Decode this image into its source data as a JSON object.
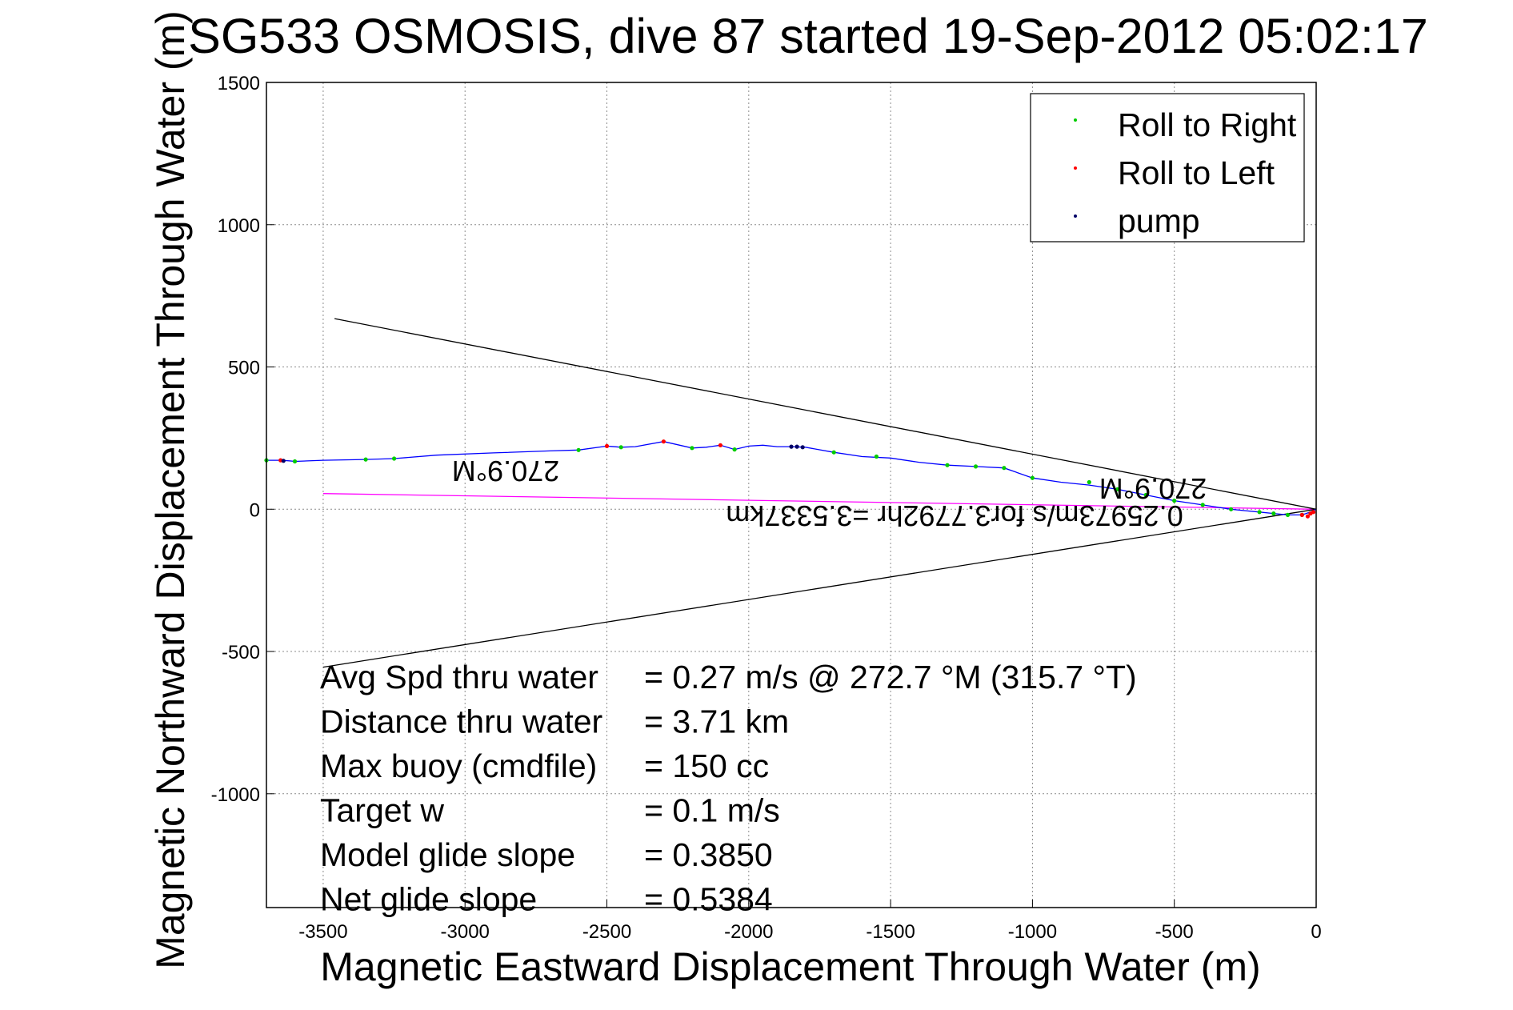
{
  "chart_data": {
    "type": "line",
    "title": "SG533 OSMOSIS, dive 87 started 19-Sep-2012 05:02:17",
    "xlabel": "Magnetic Eastward Displacement Through Water (m)",
    "ylabel": "Magnetic Northward Displacement Through Water (m)",
    "xlim": [
      -3700,
      0
    ],
    "ylim": [
      -1400,
      1500
    ],
    "xticks": [
      -3500,
      -3000,
      -2500,
      -2000,
      -1500,
      -1000,
      -500,
      0
    ],
    "yticks": [
      -1000,
      -500,
      0,
      500,
      1000,
      1500
    ],
    "grid": true,
    "legend": {
      "placement": "top-right",
      "entries": [
        {
          "label": "Roll to Right",
          "color": "#00cc00"
        },
        {
          "label": "Roll to Left",
          "color": "#ff0000"
        },
        {
          "label": "pump",
          "color": "#000066"
        }
      ]
    },
    "series": [
      {
        "color": "#0000ff",
        "x": [
          -3700,
          -3650,
          -3620,
          -3600,
          -3500,
          -3350,
          -3250,
          -3100,
          -2900,
          -2700,
          -2600,
          -2500,
          -2450,
          -2400,
          -2300,
          -2200,
          -2150,
          -2100,
          -2050,
          -2000,
          -1950,
          -1900,
          -1850,
          -1800,
          -1700,
          -1600,
          -1500,
          -1400,
          -1300,
          -1200,
          -1100,
          -1000,
          -900,
          -800,
          -700,
          -600,
          -500,
          -400,
          -300,
          -250,
          -200,
          -150,
          -100,
          -50,
          -20,
          0
        ],
        "y": [
          172,
          172,
          170,
          168,
          172,
          175,
          178,
          190,
          198,
          205,
          208,
          222,
          218,
          220,
          238,
          215,
          218,
          225,
          210,
          222,
          225,
          220,
          220,
          218,
          200,
          185,
          180,
          165,
          155,
          150,
          145,
          110,
          95,
          85,
          70,
          50,
          30,
          15,
          0,
          -5,
          -10,
          -15,
          -20,
          -20,
          -10,
          0
        ]
      },
      {
        "color": "#ff00ff",
        "x": [
          -3500,
          0
        ],
        "y": [
          55,
          0
        ]
      },
      {
        "color": "#000000",
        "x": [
          -3460,
          0
        ],
        "y": [
          670,
          0
        ]
      },
      {
        "color": "#000000",
        "x": [
          -3500,
          0
        ],
        "y": [
          -555,
          0
        ]
      }
    ],
    "markers": {
      "roll_right": {
        "color": "#00cc00",
        "x": [
          -3700,
          -3600,
          -3350,
          -3250,
          -2600,
          -2450,
          -2200,
          -2050,
          -1700,
          -1550,
          -1300,
          -1200,
          -1100,
          -1000,
          -800,
          -700,
          -600,
          -500,
          -400,
          -300,
          -200,
          -150,
          -100,
          -50
        ],
        "y": [
          172,
          168,
          175,
          178,
          208,
          218,
          215,
          210,
          200,
          185,
          155,
          150,
          145,
          110,
          95,
          70,
          50,
          30,
          15,
          0,
          -10,
          -15,
          -20,
          -20
        ]
      },
      "roll_left": {
        "color": "#ff0000",
        "x": [
          -3650,
          -2500,
          -2300,
          -2100,
          -50,
          -30,
          -20,
          -10
        ],
        "y": [
          172,
          222,
          238,
          225,
          -20,
          -25,
          -15,
          -10
        ]
      },
      "pump": {
        "color": "#000066",
        "x": [
          -3640,
          -1850,
          -1830,
          -1810
        ],
        "y": [
          170,
          220,
          220,
          218
        ]
      }
    },
    "annotations": {
      "heading_left": "270.9°M",
      "heading_right": "270.9°M",
      "speed_text": "0.25973m/s for3.7792hr =3.5337km"
    },
    "stats": [
      {
        "label": "Avg Spd thru water",
        "value": "=  0.27 m/s @ 272.7 °M (315.7 °T)"
      },
      {
        "label": "Distance thru water",
        "value": "=  3.71 km"
      },
      {
        "label": "Max buoy (cmdfile)",
        "value": "= 150 cc"
      },
      {
        "label": "Target w",
        "value": "= 0.1 m/s"
      },
      {
        "label": "Model glide slope",
        "value": "= 0.3850"
      },
      {
        "label": "Net glide slope",
        "value": "= 0.5384"
      }
    ]
  }
}
